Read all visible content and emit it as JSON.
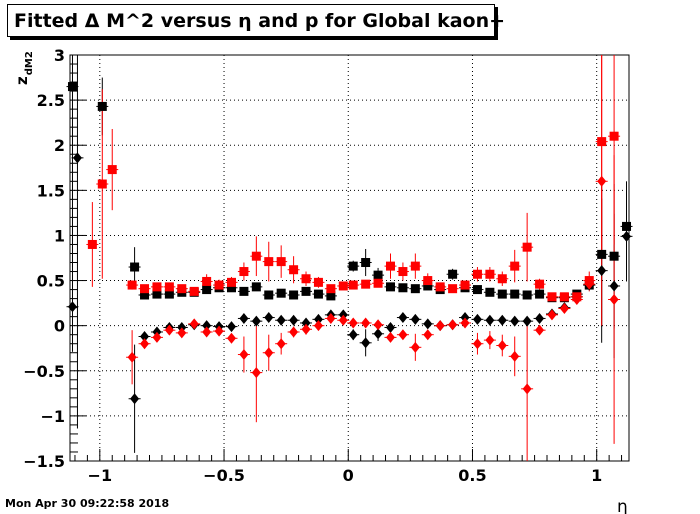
{
  "title": "Fitted Δ M^2 versus η and p for Global kaon+",
  "timestamp": "Mon Apr 30 09:22:58 2018",
  "colors": {
    "black_series": "#000000",
    "red_series": "#ff0000",
    "frame": "#000000",
    "grid": "#000000"
  },
  "chart_data": {
    "type": "scatter",
    "title": "Fitted Δ M^2 versus η and p for Global kaon+",
    "xlabel": "η",
    "ylabel": "z_dM2",
    "xlim": [
      -1.12,
      1.13
    ],
    "ylim": [
      -1.5,
      3.0
    ],
    "grid": true,
    "xticks": [
      -1,
      -0.5,
      0,
      0.5,
      1
    ],
    "xtick_labels": [
      "−1",
      "−0.5",
      "0",
      "0.5",
      "1"
    ],
    "yticks": [
      -1.5,
      -1,
      -0.5,
      0,
      0.5,
      1,
      1.5,
      2,
      2.5,
      3
    ],
    "ytick_labels": [
      "−1.5",
      "−1",
      "−0.5",
      "0",
      "0.5",
      "1",
      "1.5",
      "2",
      "2.5",
      "3"
    ],
    "series": [
      {
        "color": "#000000",
        "marker": "square",
        "points": [
          [
            -1.11,
            2.65,
            2.0
          ],
          [
            -0.99,
            2.43,
            0.32
          ],
          [
            -0.86,
            0.65,
            0.22
          ],
          [
            -0.82,
            0.34,
            0.03
          ],
          [
            -0.77,
            0.35,
            0.03
          ],
          [
            -0.72,
            0.35,
            0.03
          ],
          [
            -0.67,
            0.37,
            0.03
          ],
          [
            -0.62,
            0.37,
            0.03
          ],
          [
            -0.57,
            0.4,
            0.03
          ],
          [
            -0.52,
            0.42,
            0.03
          ],
          [
            -0.47,
            0.42,
            0.03
          ],
          [
            -0.42,
            0.38,
            0.03
          ],
          [
            -0.37,
            0.43,
            0.03
          ],
          [
            -0.32,
            0.34,
            0.03
          ],
          [
            -0.27,
            0.36,
            0.03
          ],
          [
            -0.22,
            0.34,
            0.03
          ],
          [
            -0.17,
            0.38,
            0.03
          ],
          [
            -0.12,
            0.35,
            0.03
          ],
          [
            -0.07,
            0.33,
            0.03
          ],
          [
            0.02,
            0.66,
            0.06
          ],
          [
            0.07,
            0.7,
            0.15
          ],
          [
            0.12,
            0.56,
            0.08
          ],
          [
            0.17,
            0.43,
            0.03
          ],
          [
            0.22,
            0.42,
            0.03
          ],
          [
            0.27,
            0.41,
            0.03
          ],
          [
            0.32,
            0.44,
            0.03
          ],
          [
            0.37,
            0.4,
            0.03
          ],
          [
            0.42,
            0.57,
            0.06
          ],
          [
            0.47,
            0.42,
            0.03
          ],
          [
            0.52,
            0.4,
            0.03
          ],
          [
            0.57,
            0.37,
            0.03
          ],
          [
            0.62,
            0.35,
            0.03
          ],
          [
            0.67,
            0.35,
            0.03
          ],
          [
            0.72,
            0.34,
            0.03
          ],
          [
            0.77,
            0.35,
            0.03
          ],
          [
            0.82,
            0.31,
            0.03
          ],
          [
            0.87,
            0.31,
            0.03
          ],
          [
            0.92,
            0.35,
            0.03
          ],
          [
            0.97,
            0.45,
            0.05
          ],
          [
            1.02,
            0.79,
            0.8
          ],
          [
            1.07,
            0.77,
            0.8
          ],
          [
            1.12,
            1.1,
            0.5
          ]
        ]
      },
      {
        "color": "#000000",
        "marker": "diamond",
        "points": [
          [
            -1.11,
            0.21,
            0.5
          ],
          [
            -1.09,
            1.86,
            3.0
          ],
          [
            -0.86,
            -0.81,
            0.6
          ],
          [
            -0.82,
            -0.12,
            0.03
          ],
          [
            -0.77,
            -0.07,
            0.03
          ],
          [
            -0.72,
            -0.02,
            0.03
          ],
          [
            -0.67,
            -0.02,
            0.03
          ],
          [
            -0.62,
            0.01,
            0.03
          ],
          [
            -0.57,
            0.0,
            0.03
          ],
          [
            -0.52,
            -0.01,
            0.03
          ],
          [
            -0.47,
            -0.01,
            0.03
          ],
          [
            -0.42,
            0.08,
            0.03
          ],
          [
            -0.37,
            0.05,
            0.03
          ],
          [
            -0.32,
            0.09,
            0.03
          ],
          [
            -0.27,
            0.06,
            0.03
          ],
          [
            -0.22,
            0.06,
            0.03
          ],
          [
            -0.17,
            0.03,
            0.03
          ],
          [
            -0.12,
            0.07,
            0.03
          ],
          [
            -0.07,
            0.12,
            0.03
          ],
          [
            -0.02,
            0.12,
            0.03
          ],
          [
            0.02,
            -0.1,
            0.06
          ],
          [
            0.07,
            -0.19,
            0.15
          ],
          [
            0.12,
            -0.09,
            0.08
          ],
          [
            0.17,
            -0.02,
            0.03
          ],
          [
            0.22,
            0.09,
            0.03
          ],
          [
            0.27,
            0.07,
            0.03
          ],
          [
            0.32,
            0.02,
            0.03
          ],
          [
            0.37,
            0.0,
            0.03
          ],
          [
            0.42,
            0.01,
            0.03
          ],
          [
            0.47,
            0.09,
            0.03
          ],
          [
            0.52,
            0.07,
            0.03
          ],
          [
            0.57,
            0.06,
            0.03
          ],
          [
            0.62,
            0.06,
            0.03
          ],
          [
            0.67,
            0.05,
            0.03
          ],
          [
            0.72,
            0.05,
            0.03
          ],
          [
            0.77,
            0.08,
            0.03
          ],
          [
            0.82,
            0.13,
            0.03
          ],
          [
            0.87,
            0.2,
            0.03
          ],
          [
            0.92,
            0.32,
            0.03
          ],
          [
            0.97,
            0.45,
            0.05
          ],
          [
            1.02,
            0.61,
            0.8
          ],
          [
            1.07,
            0.44,
            0.8
          ],
          [
            1.12,
            0.99,
            0.5
          ]
        ]
      },
      {
        "color": "#ff0000",
        "marker": "square",
        "points": [
          [
            -1.03,
            0.9,
            0.47
          ],
          [
            -0.99,
            1.57,
            1.05
          ],
          [
            -0.95,
            1.73,
            0.45
          ],
          [
            -0.87,
            0.45,
            0.05
          ],
          [
            -0.82,
            0.41,
            0.04
          ],
          [
            -0.77,
            0.43,
            0.04
          ],
          [
            -0.72,
            0.43,
            0.04
          ],
          [
            -0.67,
            0.41,
            0.04
          ],
          [
            -0.62,
            0.38,
            0.04
          ],
          [
            -0.57,
            0.49,
            0.08
          ],
          [
            -0.52,
            0.45,
            0.06
          ],
          [
            -0.47,
            0.48,
            0.06
          ],
          [
            -0.42,
            0.6,
            0.1
          ],
          [
            -0.37,
            0.77,
            0.22
          ],
          [
            -0.32,
            0.71,
            0.22
          ],
          [
            -0.27,
            0.71,
            0.18
          ],
          [
            -0.22,
            0.62,
            0.15
          ],
          [
            -0.17,
            0.52,
            0.08
          ],
          [
            -0.12,
            0.48,
            0.06
          ],
          [
            -0.07,
            0.41,
            0.04
          ],
          [
            -0.02,
            0.44,
            0.04
          ],
          [
            0.02,
            0.45,
            0.04
          ],
          [
            0.07,
            0.46,
            0.04
          ],
          [
            0.12,
            0.47,
            0.04
          ],
          [
            0.17,
            0.66,
            0.14
          ],
          [
            0.22,
            0.6,
            0.1
          ],
          [
            0.27,
            0.66,
            0.14
          ],
          [
            0.32,
            0.5,
            0.08
          ],
          [
            0.37,
            0.43,
            0.04
          ],
          [
            0.42,
            0.41,
            0.04
          ],
          [
            0.47,
            0.45,
            0.04
          ],
          [
            0.52,
            0.57,
            0.08
          ],
          [
            0.57,
            0.57,
            0.08
          ],
          [
            0.62,
            0.52,
            0.08
          ],
          [
            0.67,
            0.66,
            0.18
          ],
          [
            0.72,
            0.87,
            0.38
          ],
          [
            0.77,
            0.46,
            0.06
          ],
          [
            0.82,
            0.32,
            0.04
          ],
          [
            0.87,
            0.32,
            0.04
          ],
          [
            0.92,
            0.32,
            0.04
          ],
          [
            0.97,
            0.5,
            0.1
          ],
          [
            1.02,
            2.04,
            1.2
          ],
          [
            1.07,
            2.1,
            1.2
          ]
        ]
      },
      {
        "color": "#ff0000",
        "marker": "diamond",
        "points": [
          [
            -0.87,
            -0.35,
            0.3
          ],
          [
            -0.82,
            -0.2,
            0.05
          ],
          [
            -0.77,
            -0.13,
            0.05
          ],
          [
            -0.72,
            -0.05,
            0.05
          ],
          [
            -0.67,
            -0.08,
            0.05
          ],
          [
            -0.62,
            0.02,
            0.05
          ],
          [
            -0.57,
            -0.07,
            0.05
          ],
          [
            -0.52,
            -0.06,
            0.05
          ],
          [
            -0.47,
            -0.14,
            0.05
          ],
          [
            -0.42,
            -0.32,
            0.2
          ],
          [
            -0.37,
            -0.52,
            0.55
          ],
          [
            -0.32,
            -0.3,
            0.2
          ],
          [
            -0.27,
            -0.2,
            0.12
          ],
          [
            -0.22,
            -0.07,
            0.06
          ],
          [
            -0.17,
            -0.04,
            0.06
          ],
          [
            -0.12,
            0.0,
            0.05
          ],
          [
            -0.07,
            0.08,
            0.05
          ],
          [
            -0.02,
            0.06,
            0.05
          ],
          [
            0.02,
            0.03,
            0.05
          ],
          [
            0.07,
            0.03,
            0.05
          ],
          [
            0.12,
            0.01,
            0.05
          ],
          [
            0.17,
            -0.13,
            0.05
          ],
          [
            0.22,
            -0.1,
            0.05
          ],
          [
            0.27,
            -0.24,
            0.15
          ],
          [
            0.32,
            -0.1,
            0.05
          ],
          [
            0.37,
            0.0,
            0.05
          ],
          [
            0.42,
            0.01,
            0.05
          ],
          [
            0.47,
            0.03,
            0.05
          ],
          [
            0.52,
            -0.2,
            0.12
          ],
          [
            0.57,
            -0.16,
            0.1
          ],
          [
            0.62,
            -0.22,
            0.12
          ],
          [
            0.67,
            -0.34,
            0.22
          ],
          [
            0.72,
            -0.7,
            0.8
          ],
          [
            0.77,
            -0.05,
            0.05
          ],
          [
            0.82,
            0.12,
            0.04
          ],
          [
            0.87,
            0.19,
            0.04
          ],
          [
            0.92,
            0.29,
            0.04
          ],
          [
            0.97,
            0.46,
            0.08
          ],
          [
            1.02,
            1.6,
            1.6
          ],
          [
            1.07,
            0.29,
            1.6
          ]
        ]
      }
    ]
  }
}
